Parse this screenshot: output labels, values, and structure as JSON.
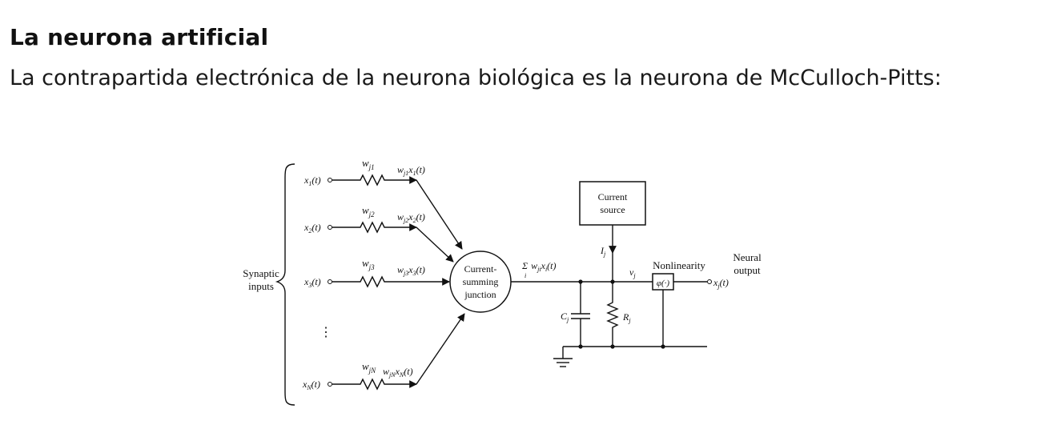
{
  "heading": {
    "title": "La neurona artificial",
    "subtitle": "La contrapartida electrónica de la neurona biológica es la neurona de McCulloch-Pitts:"
  },
  "diagram": {
    "synaptic_inputs_label": [
      "Synaptic",
      "inputs"
    ],
    "inputs": [
      {
        "signal": "x",
        "index": "1",
        "weight_sub": "j1",
        "product_sub_w": "j1",
        "product_sub_x": "1"
      },
      {
        "signal": "x",
        "index": "2",
        "weight_sub": "j2",
        "product_sub_w": "j2",
        "product_sub_x": "2"
      },
      {
        "signal": "x",
        "index": "3",
        "weight_sub": "j3",
        "product_sub_w": "j3",
        "product_sub_x": "3"
      },
      {
        "signal": "x",
        "index": "N",
        "weight_sub": "jN",
        "product_sub_w": "jN",
        "product_sub_x": "N"
      }
    ],
    "ellipsis": "⋮",
    "junction_label": [
      "Current-",
      "summing",
      "junction"
    ],
    "sum_label": {
      "sigma": "Σ",
      "index": "i",
      "term_w": "w",
      "term_sub": "ji",
      "term_x": "x",
      "term_x_sub": "i",
      "arg": "(t)"
    },
    "current_source_label": [
      "Current",
      "source"
    ],
    "bias_current": {
      "symbol": "I",
      "sub": "j"
    },
    "potential": {
      "symbol": "v",
      "sub": "j"
    },
    "capacitor": {
      "symbol": "C",
      "sub": "j"
    },
    "resistor": {
      "symbol": "R",
      "sub": "j"
    },
    "nonlinearity_label": "Nonlinearity",
    "nonlinearity_symbol": "φ(·)",
    "output_signal": {
      "symbol": "x",
      "sub": "j",
      "arg": "(t)"
    },
    "output_label": [
      "Neural",
      "output"
    ],
    "time_arg": "(t)",
    "weight_symbol": "w"
  }
}
